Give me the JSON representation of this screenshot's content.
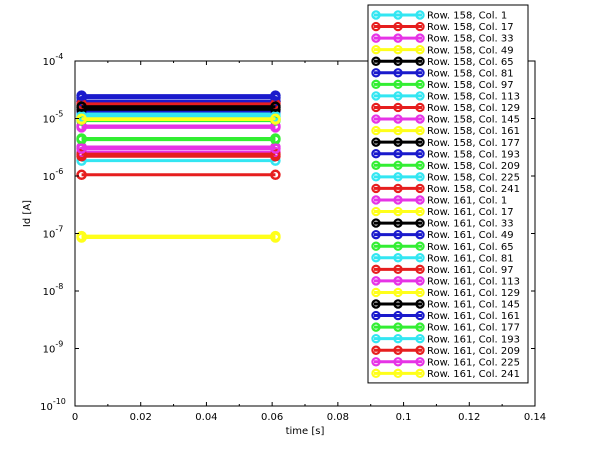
{
  "chart_data": {
    "type": "line",
    "xlabel": "time [s]",
    "ylabel": "Id [A]",
    "xlim": [
      0,
      0.14
    ],
    "ylim_exp": [
      -10,
      -4
    ],
    "y_scale": "log",
    "x_ticks": [
      {
        "v": 0,
        "label": "0"
      },
      {
        "v": 0.02,
        "label": "0.02"
      },
      {
        "v": 0.04,
        "label": "0.04"
      },
      {
        "v": 0.06,
        "label": "0.06"
      },
      {
        "v": 0.08,
        "label": "0.08"
      },
      {
        "v": 0.1,
        "label": "0.1"
      },
      {
        "v": 0.12,
        "label": "0.12"
      },
      {
        "v": 0.14,
        "label": "0.14"
      }
    ],
    "y_ticks": [
      {
        "exp": -4,
        "base": "10",
        "sup": "-4"
      },
      {
        "exp": -5,
        "base": "10",
        "sup": "-5"
      },
      {
        "exp": -6,
        "base": "10",
        "sup": "-6"
      },
      {
        "exp": -7,
        "base": "10",
        "sup": "-7"
      },
      {
        "exp": -8,
        "base": "10",
        "sup": "-8"
      },
      {
        "exp": -9,
        "base": "10",
        "sup": "-9"
      },
      {
        "exp": -10,
        "base": "10",
        "sup": "-10"
      }
    ],
    "x": [
      0.002,
      0.061
    ],
    "legend_position": "right",
    "series": [
      {
        "name": "Row. 158, Col. 1",
        "color": "#33e6f2",
        "value": 1.85e-06
      },
      {
        "name": "Row. 158, Col. 17",
        "color": "#e61e1e",
        "value": 1.05e-06
      },
      {
        "name": "Row. 158, Col. 33",
        "color": "#e633e6",
        "value": 3.2e-06
      },
      {
        "name": "Row. 158, Col. 49",
        "color": "#ffff1a",
        "value": 9e-08
      },
      {
        "name": "Row. 158, Col. 65",
        "color": "#000000",
        "value": 1.55e-05
      },
      {
        "name": "Row. 158, Col. 81",
        "color": "#1a1acc",
        "value": 2.3e-05
      },
      {
        "name": "Row. 158, Col. 97",
        "color": "#33ee33",
        "value": 9.5e-06
      },
      {
        "name": "Row. 158, Col. 113",
        "color": "#33e6f2",
        "value": 1.2e-05
      },
      {
        "name": "Row. 158, Col. 129",
        "color": "#e61e1e",
        "value": 1.95e-05
      },
      {
        "name": "Row. 158, Col. 145",
        "color": "#e633e6",
        "value": 7.4e-06
      },
      {
        "name": "Row. 158, Col. 161",
        "color": "#ffff1a",
        "value": 1e-05
      },
      {
        "name": "Row. 158, Col. 177",
        "color": "#000000",
        "value": 1.7e-05
      },
      {
        "name": "Row. 158, Col. 193",
        "color": "#1a1acc",
        "value": 1.35e-05
      },
      {
        "name": "Row. 158, Col. 209",
        "color": "#33ee33",
        "value": 4.5e-06
      },
      {
        "name": "Row. 158, Col. 225",
        "color": "#33e6f2",
        "value": 9.8e-06
      },
      {
        "name": "Row. 158, Col. 241",
        "color": "#e61e1e",
        "value": 2.2e-06
      },
      {
        "name": "Row. 161, Col. 1",
        "color": "#e633e6",
        "value": 2.6e-06
      },
      {
        "name": "Row. 161, Col. 17",
        "color": "#ffff1a",
        "value": 8.5e-08
      },
      {
        "name": "Row. 161, Col. 33",
        "color": "#000000",
        "value": 1.45e-05
      },
      {
        "name": "Row. 161, Col. 49",
        "color": "#1a1acc",
        "value": 2e-05
      },
      {
        "name": "Row. 161, Col. 65",
        "color": "#33ee33",
        "value": 9.2e-06
      },
      {
        "name": "Row. 161, Col. 81",
        "color": "#33e6f2",
        "value": 1.1e-05
      },
      {
        "name": "Row. 161, Col. 97",
        "color": "#e61e1e",
        "value": 1.8e-05
      },
      {
        "name": "Row. 161, Col. 113",
        "color": "#e633e6",
        "value": 7e-06
      },
      {
        "name": "Row. 161, Col. 129",
        "color": "#ffff1a",
        "value": 9.6e-06
      },
      {
        "name": "Row. 161, Col. 145",
        "color": "#000000",
        "value": 1.6e-05
      },
      {
        "name": "Row. 161, Col. 161",
        "color": "#1a1acc",
        "value": 2.5e-05
      },
      {
        "name": "Row. 161, Col. 177",
        "color": "#33ee33",
        "value": 4.3e-06
      },
      {
        "name": "Row. 161, Col. 193",
        "color": "#33e6f2",
        "value": 1.05e-05
      },
      {
        "name": "Row. 161, Col. 209",
        "color": "#e61e1e",
        "value": 2.4e-06
      },
      {
        "name": "Row. 161, Col. 225",
        "color": "#e633e6",
        "value": 3e-06
      },
      {
        "name": "Row. 161, Col. 241",
        "color": "#ffff1a",
        "value": 9.9e-06
      }
    ]
  }
}
